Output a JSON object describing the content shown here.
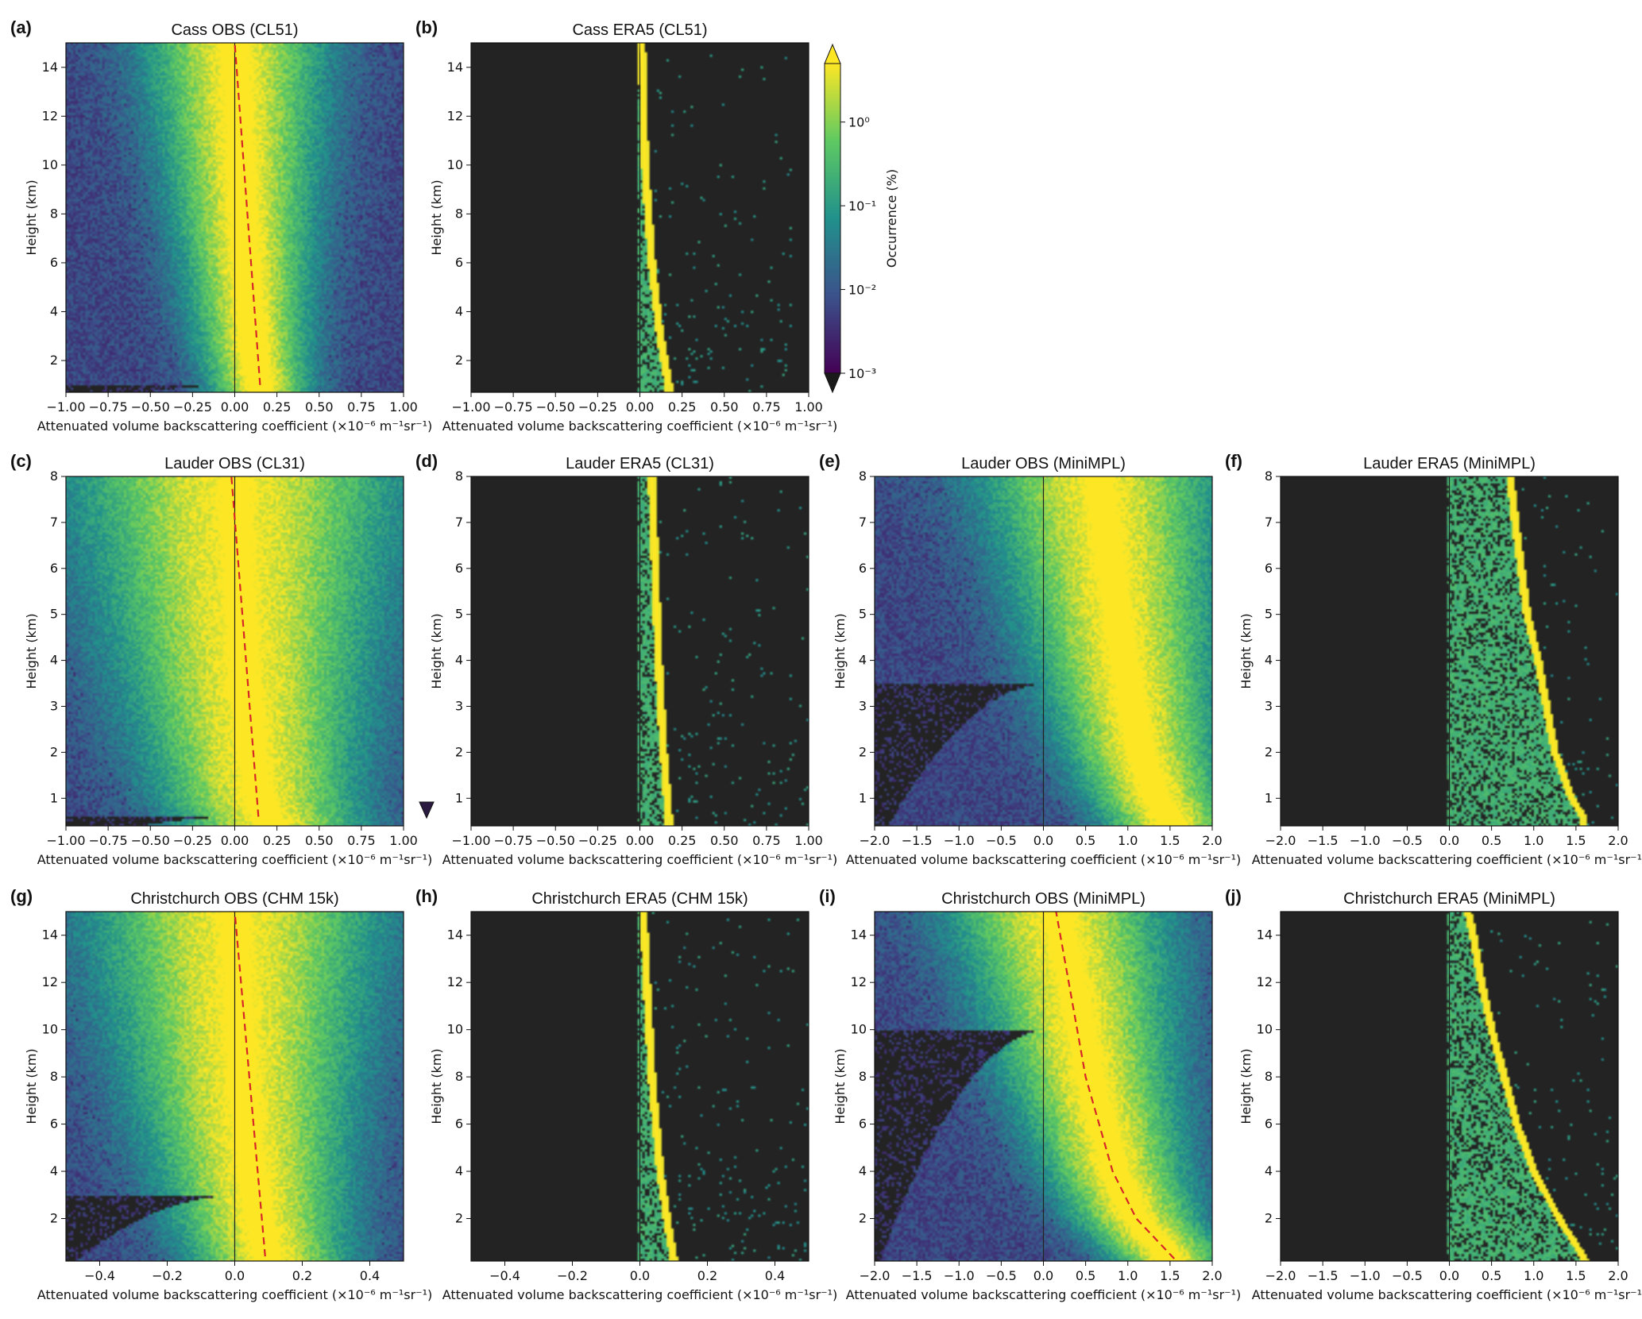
{
  "figure": {
    "colorbar": {
      "label": "Occurrence (%)",
      "scale": "log",
      "range": [
        0.001,
        5
      ],
      "ticks": [
        {
          "value": 1,
          "label": "10⁰"
        },
        {
          "value": 0.1,
          "label": "10⁻¹"
        },
        {
          "value": 0.01,
          "label": "10⁻²"
        },
        {
          "value": 0.001,
          "label": "10⁻³"
        }
      ],
      "colormap": [
        "#440154",
        "#3b528b",
        "#21918c",
        "#5ec962",
        "#fde725"
      ],
      "extend": "both"
    }
  },
  "chart_data": [
    {
      "id": "a",
      "panel_label": "(a)",
      "type": "heatmap",
      "kind": "obs",
      "title": "Cass OBS (CL51)",
      "xlabel": "Attenuated volume backscattering coefficient (×10⁻⁶ m⁻¹sr⁻¹)",
      "ylabel": "Height (km)",
      "xlim": [
        -1.0,
        1.0
      ],
      "ylim": [
        0.7,
        15
      ],
      "xticks": [
        -1.0,
        -0.75,
        -0.5,
        -0.25,
        0.0,
        0.25,
        0.5,
        0.75,
        1.0
      ],
      "xticklabels": [
        "−1.00",
        "−0.75",
        "−0.50",
        "−0.25",
        "0.00",
        "0.25",
        "0.50",
        "0.75",
        "1.00"
      ],
      "yticks": [
        2,
        4,
        6,
        8,
        10,
        12,
        14
      ],
      "yticklabels": [
        "2",
        "4",
        "6",
        "8",
        "10",
        "12",
        "14"
      ],
      "spread": 0.5,
      "noise_floor_height": 1.0,
      "ridge": {
        "heights": [
          0.8,
          2,
          4,
          8,
          15
        ],
        "x": [
          0.15,
          0.12,
          0.09,
          0.05,
          0.0
        ]
      },
      "dashed_line": {
        "color": "#d62728",
        "heights": [
          1.0,
          15
        ],
        "x": [
          0.15,
          0.0
        ]
      },
      "show_colorbar": false,
      "show_cbar_marker": false
    },
    {
      "id": "b",
      "panel_label": "(b)",
      "type": "heatmap",
      "kind": "era5",
      "title": "Cass ERA5 (CL51)",
      "xlabel": "Attenuated volume backscattering coefficient (×10⁻⁶ m⁻¹sr⁻¹)",
      "ylabel": "Height (km)",
      "xlim": [
        -1.0,
        1.0
      ],
      "ylim": [
        0.7,
        15
      ],
      "xticks": [
        -1.0,
        -0.75,
        -0.5,
        -0.25,
        0.0,
        0.25,
        0.5,
        0.75,
        1.0
      ],
      "xticklabels": [
        "−1.00",
        "−0.75",
        "−0.50",
        "−0.25",
        "0.00",
        "0.25",
        "0.50",
        "0.75",
        "1.00"
      ],
      "yticks": [
        2,
        4,
        6,
        8,
        10,
        12,
        14
      ],
      "yticklabels": [
        "2",
        "4",
        "6",
        "8",
        "10",
        "12",
        "14"
      ],
      "ridge": {
        "heights": [
          1.0,
          3,
          6,
          10,
          15
        ],
        "x": [
          0.17,
          0.12,
          0.07,
          0.03,
          0.01
        ]
      },
      "scatter_xmax": 0.9,
      "show_colorbar": true,
      "show_cbar_marker": false
    },
    {
      "id": "c",
      "panel_label": "(c)",
      "type": "heatmap",
      "kind": "obs",
      "title": "Lauder OBS (CL31)",
      "xlabel": "Attenuated volume backscattering coefficient (×10⁻⁶ m⁻¹sr⁻¹)",
      "ylabel": "Height (km)",
      "xlim": [
        -1.0,
        1.0
      ],
      "ylim": [
        0.4,
        8
      ],
      "xticks": [
        -1.0,
        -0.75,
        -0.5,
        -0.25,
        0.0,
        0.25,
        0.5,
        0.75,
        1.0
      ],
      "xticklabels": [
        "−1.00",
        "−0.75",
        "−0.50",
        "−0.25",
        "0.00",
        "0.25",
        "0.50",
        "0.75",
        "1.00"
      ],
      "yticks": [
        1,
        2,
        3,
        4,
        5,
        6,
        7,
        8
      ],
      "yticklabels": [
        "1",
        "2",
        "3",
        "4",
        "5",
        "6",
        "7",
        "8"
      ],
      "spread": 0.9,
      "noise_floor_height": 0.6,
      "ridge": {
        "heights": [
          0.5,
          1,
          2,
          4,
          8
        ],
        "x": [
          0.2,
          0.14,
          0.1,
          0.05,
          0.0
        ]
      },
      "dashed_line": {
        "color": "#d62728",
        "heights": [
          0.6,
          8
        ],
        "x": [
          0.14,
          -0.02
        ]
      },
      "show_colorbar": false,
      "show_cbar_marker": true
    },
    {
      "id": "d",
      "panel_label": "(d)",
      "type": "heatmap",
      "kind": "era5",
      "title": "Lauder ERA5 (CL31)",
      "xlabel": "Attenuated volume backscattering coefficient (×10⁻⁶ m⁻¹sr⁻¹)",
      "ylabel": "Height (km)",
      "xlim": [
        -1.0,
        1.0
      ],
      "ylim": [
        0.4,
        8
      ],
      "xticks": [
        -1.0,
        -0.75,
        -0.5,
        -0.25,
        0.0,
        0.25,
        0.5,
        0.75,
        1.0
      ],
      "xticklabels": [
        "−1.00",
        "−0.75",
        "−0.50",
        "−0.25",
        "0.00",
        "0.25",
        "0.50",
        "0.75",
        "1.00"
      ],
      "yticks": [
        1,
        2,
        3,
        4,
        5,
        6,
        7,
        8
      ],
      "yticklabels": [
        "1",
        "2",
        "3",
        "4",
        "5",
        "6",
        "7",
        "8"
      ],
      "ridge": {
        "heights": [
          0.6,
          2,
          4,
          6,
          8
        ],
        "x": [
          0.17,
          0.14,
          0.11,
          0.09,
          0.07
        ]
      },
      "scatter_xmax": 1.0,
      "show_colorbar": false,
      "show_cbar_marker": false
    },
    {
      "id": "e",
      "panel_label": "(e)",
      "type": "heatmap",
      "kind": "obs",
      "title": "Lauder OBS (MiniMPL)",
      "xlabel": "Attenuated volume backscattering coefficient (×10⁻⁶ m⁻¹sr⁻¹)",
      "ylabel": "Height (km)",
      "xlim": [
        -2.0,
        2.0
      ],
      "ylim": [
        0.4,
        8
      ],
      "xticks": [
        -2.0,
        -1.5,
        -1.0,
        -0.5,
        0.0,
        0.5,
        1.0,
        1.5,
        2.0
      ],
      "xticklabels": [
        "−2.0",
        "−1.5",
        "−1.0",
        "−0.5",
        "0.0",
        "0.5",
        "1.0",
        "1.5",
        "2.0"
      ],
      "yticks": [
        1,
        2,
        3,
        4,
        5,
        6,
        7,
        8
      ],
      "yticklabels": [
        "1",
        "2",
        "3",
        "4",
        "5",
        "6",
        "7",
        "8"
      ],
      "spread": 1.3,
      "noise_floor_height": 3.5,
      "ridge": {
        "heights": [
          0.5,
          1,
          2,
          4,
          6,
          8
        ],
        "x": [
          1.5,
          1.35,
          1.15,
          0.95,
          0.8,
          0.65
        ]
      },
      "show_colorbar": false,
      "show_cbar_marker": false
    },
    {
      "id": "f",
      "panel_label": "(f)",
      "type": "heatmap",
      "kind": "era5",
      "title": "Lauder ERA5 (MiniMPL)",
      "xlabel": "Attenuated volume backscattering coefficient (×10⁻⁶ m⁻¹sr⁻¹)",
      "ylabel": "Height (km)",
      "xlim": [
        -2.0,
        2.0
      ],
      "ylim": [
        0.4,
        8
      ],
      "xticks": [
        -2.0,
        -1.5,
        -1.0,
        -0.5,
        0.0,
        0.5,
        1.0,
        1.5,
        2.0
      ],
      "xticklabels": [
        "−2.0",
        "−1.5",
        "−1.0",
        "−0.5",
        "0.0",
        "0.5",
        "1.0",
        "1.5",
        "2.0"
      ],
      "yticks": [
        1,
        2,
        3,
        4,
        5,
        6,
        7,
        8
      ],
      "yticklabels": [
        "1",
        "2",
        "3",
        "4",
        "5",
        "6",
        "7",
        "8"
      ],
      "ridge": {
        "heights": [
          0.6,
          1,
          2,
          3,
          4,
          5,
          6,
          7,
          8
        ],
        "x": [
          1.58,
          1.45,
          1.25,
          1.15,
          1.05,
          0.92,
          0.85,
          0.78,
          0.72
        ]
      },
      "scatter_xmax": 2.0,
      "show_colorbar": false,
      "show_cbar_marker": false
    },
    {
      "id": "g",
      "panel_label": "(g)",
      "type": "heatmap",
      "kind": "obs",
      "title": "Christchurch OBS (CHM 15k)",
      "xlabel": "Attenuated volume backscattering coefficient (×10⁻⁶ m⁻¹sr⁻¹)",
      "ylabel": "Height (km)",
      "xlim": [
        -0.5,
        0.5
      ],
      "ylim": [
        0.2,
        15
      ],
      "xticks": [
        -0.4,
        -0.2,
        0.0,
        0.2,
        0.4
      ],
      "xticklabels": [
        "−0.4",
        "−0.2",
        "0.0",
        "0.2",
        "0.4"
      ],
      "yticks": [
        2,
        4,
        6,
        8,
        10,
        12,
        14
      ],
      "yticklabels": [
        "2",
        "4",
        "6",
        "8",
        "10",
        "12",
        "14"
      ],
      "spread": 0.4,
      "noise_floor_height": 3.0,
      "ridge": {
        "heights": [
          0.3,
          2,
          4,
          8,
          15
        ],
        "x": [
          0.1,
          0.07,
          0.05,
          0.02,
          0.0
        ]
      },
      "dashed_line": {
        "color": "#d62728",
        "heights": [
          0.4,
          15
        ],
        "x": [
          0.09,
          0.0
        ]
      },
      "show_colorbar": false,
      "show_cbar_marker": false
    },
    {
      "id": "h",
      "panel_label": "(h)",
      "type": "heatmap",
      "kind": "era5",
      "title": "Christchurch ERA5 (CHM 15k)",
      "xlabel": "Attenuated volume backscattering coefficient (×10⁻⁶ m⁻¹sr⁻¹)",
      "ylabel": "Height (km)",
      "xlim": [
        -0.5,
        0.5
      ],
      "ylim": [
        0.2,
        15
      ],
      "xticks": [
        -0.4,
        -0.2,
        0.0,
        0.2,
        0.4
      ],
      "xticklabels": [
        "−0.4",
        "−0.2",
        "0.0",
        "0.2",
        "0.4"
      ],
      "yticks": [
        2,
        4,
        6,
        8,
        10,
        12,
        14
      ],
      "yticklabels": [
        "2",
        "4",
        "6",
        "8",
        "10",
        "12",
        "14"
      ],
      "ridge": {
        "heights": [
          0.3,
          2,
          4,
          8,
          12,
          15
        ],
        "x": [
          0.1,
          0.08,
          0.06,
          0.035,
          0.02,
          0.01
        ]
      },
      "scatter_xmax": 0.5,
      "show_colorbar": false,
      "show_cbar_marker": false
    },
    {
      "id": "i",
      "panel_label": "(i)",
      "type": "heatmap",
      "kind": "obs",
      "title": "Christchurch OBS (MiniMPL)",
      "xlabel": "Attenuated volume backscattering coefficient (×10⁻⁶ m⁻¹sr⁻¹)",
      "ylabel": "Height (km)",
      "xlim": [
        -2.0,
        2.0
      ],
      "ylim": [
        0.2,
        15
      ],
      "xticks": [
        -2.0,
        -1.5,
        -1.0,
        -0.5,
        0.0,
        0.5,
        1.0,
        1.5,
        2.0
      ],
      "xticklabels": [
        "−2.0",
        "−1.5",
        "−1.0",
        "−0.5",
        "0.0",
        "0.5",
        "1.0",
        "1.5",
        "2.0"
      ],
      "yticks": [
        2,
        4,
        6,
        8,
        10,
        12,
        14
      ],
      "yticklabels": [
        "2",
        "4",
        "6",
        "8",
        "10",
        "12",
        "14"
      ],
      "spread": 1.2,
      "noise_floor_height": 10.0,
      "ridge": {
        "heights": [
          0.3,
          2,
          4,
          8,
          12,
          15
        ],
        "x": [
          1.5,
          1.1,
          0.85,
          0.55,
          0.35,
          0.15
        ]
      },
      "dashed_line": {
        "color": "#d62728",
        "heights": [
          0.3,
          2,
          4,
          8,
          12,
          15
        ],
        "x": [
          1.55,
          1.1,
          0.82,
          0.5,
          0.3,
          0.15
        ]
      },
      "show_colorbar": false,
      "show_cbar_marker": false
    },
    {
      "id": "j",
      "panel_label": "(j)",
      "type": "heatmap",
      "kind": "era5",
      "title": "Christchurch ERA5 (MiniMPL)",
      "xlabel": "Attenuated volume backscattering coefficient (×10⁻⁶ m⁻¹sr⁻¹)",
      "ylabel": "Height (km)",
      "xlim": [
        -2.0,
        2.0
      ],
      "ylim": [
        0.2,
        15
      ],
      "xticks": [
        -2.0,
        -1.5,
        -1.0,
        -0.5,
        0.0,
        0.5,
        1.0,
        1.5,
        2.0
      ],
      "xticklabels": [
        "−2.0",
        "−1.5",
        "−1.0",
        "−0.5",
        "0.0",
        "0.5",
        "1.0",
        "1.5",
        "2.0"
      ],
      "yticks": [
        2,
        4,
        6,
        8,
        10,
        12,
        14
      ],
      "yticklabels": [
        "2",
        "4",
        "6",
        "8",
        "10",
        "12",
        "14"
      ],
      "ridge": {
        "heights": [
          0.3,
          2,
          4,
          6,
          8,
          10,
          12,
          14,
          15
        ],
        "x": [
          1.6,
          1.3,
          1.0,
          0.8,
          0.65,
          0.5,
          0.38,
          0.28,
          0.22
        ]
      },
      "scatter_xmax": 2.0,
      "show_colorbar": false,
      "show_cbar_marker": false
    }
  ]
}
